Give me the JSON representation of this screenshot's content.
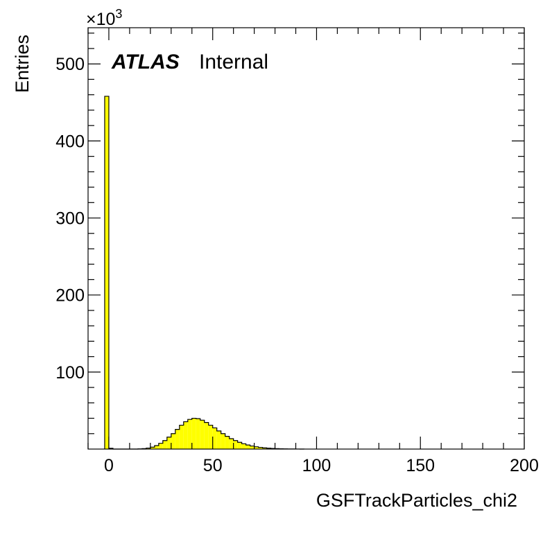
{
  "chart_data": {
    "type": "bar",
    "histogram": true,
    "xlabel": "GSFTrackParticles_chi2",
    "ylabel": "Entries",
    "y_multiplier_base": "×10",
    "y_multiplier_exp": "3",
    "xlim": [
      -10,
      200
    ],
    "ylim": [
      0,
      547
    ],
    "x_ticks": [
      0,
      50,
      100,
      150,
      200
    ],
    "x_tick_labels": [
      "0",
      "50",
      "100",
      "150",
      "200"
    ],
    "y_ticks": [
      100,
      200,
      300,
      400,
      500
    ],
    "y_tick_labels": [
      "100",
      "200",
      "300",
      "400",
      "500"
    ],
    "bin_width": 2,
    "bin_low_edges": [
      -2,
      0,
      2,
      4,
      6,
      8,
      10,
      12,
      14,
      16,
      18,
      20,
      22,
      24,
      26,
      28,
      30,
      32,
      34,
      36,
      38,
      40,
      42,
      44,
      46,
      48,
      50,
      52,
      54,
      56,
      58,
      60,
      62,
      64,
      66,
      68,
      70,
      72,
      74,
      76,
      78,
      80,
      82,
      84,
      86,
      88,
      90,
      92
    ],
    "values": [
      458,
      1,
      0,
      0,
      0,
      0,
      0,
      0,
      0.3,
      0.6,
      1.3,
      2.5,
      4.5,
      7.5,
      11,
      15.5,
      20,
      25.5,
      31,
      35.5,
      38.5,
      40,
      39.5,
      37.5,
      34.5,
      31,
      27.5,
      23.5,
      20,
      16.5,
      13.5,
      11,
      8.8,
      6.9,
      5.3,
      4,
      3,
      2.2,
      1.6,
      1.1,
      0.8,
      0.55,
      0.38,
      0.25,
      0.16,
      0.1,
      0.05,
      0.02
    ],
    "fill_color": "#ffff00",
    "line_color": "#000000",
    "grid": false,
    "annotations": [
      {
        "bold_italic": "ATLAS",
        "text": "Internal"
      }
    ]
  }
}
